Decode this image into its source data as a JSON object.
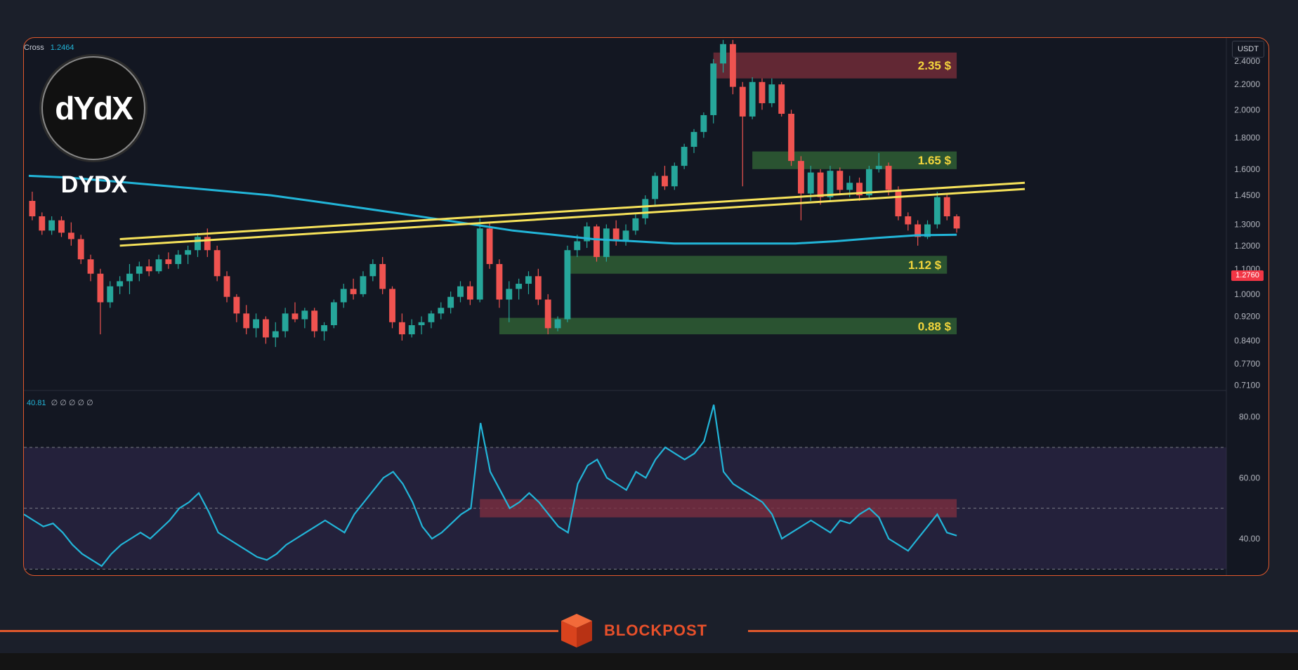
{
  "asset": {
    "name": "DYDX",
    "logo_text": "dYdX"
  },
  "legend": {
    "ma_label": "Cross",
    "ma_value": "1.2464",
    "rsi_value": "40.81",
    "rsi_placeholders": "∅ ∅ ∅ ∅ ∅"
  },
  "price_axis": {
    "currency": "USDT",
    "current_price": "1.2760"
  },
  "footer": {
    "brand": "BLOCKPOST"
  },
  "colors": {
    "up": "#26a69a",
    "down": "#ef5350",
    "ma": "#22b5d8",
    "trendline": "#f6e25a",
    "rsi": "#22b5d8",
    "zone_green": "#2d5a33",
    "zone_red": "#6b2a36",
    "label": "#f3d53c",
    "accent": "#e0582c"
  },
  "chart_data": [
    {
      "type": "candlestick",
      "title": "",
      "y_scale": "log",
      "y_ticks": [
        "2.4000",
        "2.2000",
        "2.0000",
        "1.8000",
        "1.6000",
        "1.4500",
        "1.3000",
        "1.2000",
        "1.1000",
        "1.0000",
        "0.9200",
        "0.8400",
        "0.7700",
        "0.7100"
      ],
      "ylim": [
        0.7,
        2.62
      ],
      "ohlc": [
        [
          1.42,
          1.47,
          1.32,
          1.34
        ],
        [
          1.34,
          1.36,
          1.25,
          1.27
        ],
        [
          1.27,
          1.34,
          1.25,
          1.32
        ],
        [
          1.32,
          1.34,
          1.24,
          1.26
        ],
        [
          1.26,
          1.31,
          1.2,
          1.23
        ],
        [
          1.23,
          1.25,
          1.12,
          1.14
        ],
        [
          1.14,
          1.16,
          1.05,
          1.08
        ],
        [
          1.08,
          1.1,
          0.86,
          0.97
        ],
        [
          0.97,
          1.05,
          0.95,
          1.03
        ],
        [
          1.03,
          1.07,
          1.0,
          1.05
        ],
        [
          1.05,
          1.12,
          1.0,
          1.08
        ],
        [
          1.08,
          1.13,
          1.05,
          1.11
        ],
        [
          1.11,
          1.14,
          1.07,
          1.09
        ],
        [
          1.09,
          1.16,
          1.08,
          1.14
        ],
        [
          1.14,
          1.17,
          1.1,
          1.12
        ],
        [
          1.12,
          1.18,
          1.1,
          1.16
        ],
        [
          1.16,
          1.2,
          1.12,
          1.18
        ],
        [
          1.18,
          1.26,
          1.15,
          1.24
        ],
        [
          1.24,
          1.28,
          1.15,
          1.18
        ],
        [
          1.18,
          1.2,
          1.05,
          1.07
        ],
        [
          1.07,
          1.09,
          0.97,
          0.99
        ],
        [
          0.99,
          1.0,
          0.9,
          0.93
        ],
        [
          0.93,
          0.96,
          0.86,
          0.88
        ],
        [
          0.88,
          0.93,
          0.85,
          0.91
        ],
        [
          0.91,
          0.92,
          0.83,
          0.85
        ],
        [
          0.85,
          0.9,
          0.82,
          0.87
        ],
        [
          0.87,
          0.95,
          0.85,
          0.93
        ],
        [
          0.93,
          0.97,
          0.9,
          0.91
        ],
        [
          0.91,
          0.95,
          0.88,
          0.94
        ],
        [
          0.94,
          0.95,
          0.85,
          0.87
        ],
        [
          0.87,
          0.9,
          0.84,
          0.89
        ],
        [
          0.89,
          0.98,
          0.88,
          0.97
        ],
        [
          0.97,
          1.04,
          0.95,
          1.02
        ],
        [
          1.02,
          1.06,
          0.98,
          1.0
        ],
        [
          1.0,
          1.09,
          0.99,
          1.07
        ],
        [
          1.07,
          1.14,
          1.05,
          1.12
        ],
        [
          1.12,
          1.15,
          1.0,
          1.02
        ],
        [
          1.02,
          1.03,
          0.88,
          0.9
        ],
        [
          0.9,
          0.93,
          0.84,
          0.86
        ],
        [
          0.86,
          0.91,
          0.85,
          0.89
        ],
        [
          0.89,
          0.92,
          0.86,
          0.9
        ],
        [
          0.9,
          0.94,
          0.88,
          0.93
        ],
        [
          0.93,
          0.97,
          0.91,
          0.95
        ],
        [
          0.95,
          1.01,
          0.93,
          0.99
        ],
        [
          0.99,
          1.05,
          0.97,
          1.03
        ],
        [
          1.03,
          1.05,
          0.96,
          0.98
        ],
        [
          0.98,
          1.33,
          0.97,
          1.28
        ],
        [
          1.28,
          1.31,
          1.1,
          1.12
        ],
        [
          1.12,
          1.14,
          0.95,
          0.98
        ],
        [
          0.98,
          1.05,
          0.9,
          1.02
        ],
        [
          1.02,
          1.06,
          0.98,
          1.04
        ],
        [
          1.04,
          1.09,
          1.0,
          1.07
        ],
        [
          1.07,
          1.1,
          0.96,
          0.98
        ],
        [
          0.98,
          1.0,
          0.86,
          0.88
        ],
        [
          0.88,
          0.92,
          0.87,
          0.91
        ],
        [
          0.91,
          1.2,
          0.9,
          1.18
        ],
        [
          1.18,
          1.25,
          1.15,
          1.22
        ],
        [
          1.22,
          1.31,
          1.19,
          1.29
        ],
        [
          1.29,
          1.3,
          1.13,
          1.15
        ],
        [
          1.15,
          1.3,
          1.13,
          1.28
        ],
        [
          1.28,
          1.32,
          1.2,
          1.22
        ],
        [
          1.22,
          1.3,
          1.2,
          1.27
        ],
        [
          1.27,
          1.35,
          1.25,
          1.33
        ],
        [
          1.33,
          1.45,
          1.3,
          1.43
        ],
        [
          1.43,
          1.58,
          1.4,
          1.56
        ],
        [
          1.56,
          1.62,
          1.48,
          1.5
        ],
        [
          1.5,
          1.64,
          1.48,
          1.62
        ],
        [
          1.62,
          1.76,
          1.6,
          1.74
        ],
        [
          1.74,
          1.86,
          1.7,
          1.84
        ],
        [
          1.84,
          1.98,
          1.8,
          1.96
        ],
        [
          1.96,
          2.42,
          1.9,
          2.38
        ],
        [
          2.38,
          2.6,
          2.3,
          2.56
        ],
        [
          2.56,
          2.6,
          2.12,
          2.18
        ],
        [
          2.18,
          2.22,
          1.5,
          1.95
        ],
        [
          1.95,
          2.26,
          1.93,
          2.22
        ],
        [
          2.22,
          2.25,
          2.0,
          2.05
        ],
        [
          2.05,
          2.25,
          2.02,
          2.2
        ],
        [
          2.2,
          2.22,
          1.95,
          1.97
        ],
        [
          1.97,
          2.0,
          1.62,
          1.65
        ],
        [
          1.65,
          1.68,
          1.32,
          1.46
        ],
        [
          1.46,
          1.62,
          1.42,
          1.58
        ],
        [
          1.58,
          1.6,
          1.4,
          1.44
        ],
        [
          1.44,
          1.62,
          1.42,
          1.59
        ],
        [
          1.59,
          1.61,
          1.45,
          1.48
        ],
        [
          1.48,
          1.56,
          1.44,
          1.52
        ],
        [
          1.52,
          1.55,
          1.42,
          1.45
        ],
        [
          1.45,
          1.62,
          1.43,
          1.6
        ],
        [
          1.6,
          1.7,
          1.58,
          1.62
        ],
        [
          1.62,
          1.64,
          1.45,
          1.48
        ],
        [
          1.48,
          1.5,
          1.32,
          1.34
        ],
        [
          1.34,
          1.36,
          1.27,
          1.3
        ],
        [
          1.3,
          1.32,
          1.2,
          1.24
        ],
        [
          1.24,
          1.32,
          1.23,
          1.3
        ],
        [
          1.3,
          1.47,
          1.28,
          1.44
        ],
        [
          1.44,
          1.46,
          1.32,
          1.34
        ],
        [
          1.34,
          1.35,
          1.26,
          1.28
        ]
      ],
      "moving_average": [
        1.56,
        1.55,
        1.53,
        1.51,
        1.49,
        1.47,
        1.45,
        1.42,
        1.39,
        1.36,
        1.33,
        1.3,
        1.27,
        1.25,
        1.23,
        1.22,
        1.21,
        1.21,
        1.21,
        1.21,
        1.22,
        1.235,
        1.248,
        1.25
      ],
      "trendlines": [
        {
          "from": [
            9,
            1.23
          ],
          "to": [
            102,
            1.52
          ]
        },
        {
          "from": [
            9,
            1.2
          ],
          "to": [
            102,
            1.485
          ]
        }
      ],
      "zones": [
        {
          "label": "2.35 $",
          "y_from": 2.25,
          "y_to": 2.48,
          "x_from": 70,
          "x_to": 95,
          "color": "red"
        },
        {
          "label": "1.65 $",
          "y_from": 1.6,
          "y_to": 1.71,
          "x_from": 74,
          "x_to": 95,
          "color": "green"
        },
        {
          "label": "1.12 $",
          "y_from": 1.08,
          "y_to": 1.155,
          "x_from": 55,
          "x_to": 94,
          "color": "green"
        },
        {
          "label": "0.88 $",
          "y_from": 0.86,
          "y_to": 0.915,
          "x_from": 48,
          "x_to": 95,
          "color": "green"
        }
      ]
    },
    {
      "type": "line",
      "title": "",
      "y_ticks": [
        "80.00",
        "60.00",
        "40.00"
      ],
      "ylim": [
        28,
        88
      ],
      "bands": [
        30,
        50,
        70
      ],
      "values": [
        48,
        46,
        44,
        45,
        42,
        38,
        35,
        33,
        31,
        35,
        38,
        40,
        42,
        40,
        43,
        46,
        50,
        52,
        55,
        49,
        42,
        40,
        38,
        36,
        34,
        33,
        35,
        38,
        40,
        42,
        44,
        46,
        44,
        42,
        48,
        52,
        56,
        60,
        62,
        58,
        52,
        44,
        40,
        42,
        45,
        48,
        50,
        78,
        62,
        56,
        50,
        52,
        55,
        52,
        48,
        44,
        42,
        58,
        64,
        66,
        60,
        58,
        56,
        62,
        60,
        66,
        70,
        68,
        66,
        68,
        72,
        84,
        62,
        58,
        56,
        54,
        52,
        48,
        40,
        42,
        44,
        46,
        44,
        42,
        46,
        45,
        48,
        50,
        47,
        40,
        38,
        36,
        40,
        44,
        48,
        42,
        41
      ],
      "highlight_zone": {
        "y_from": 47,
        "y_to": 53
      }
    }
  ]
}
